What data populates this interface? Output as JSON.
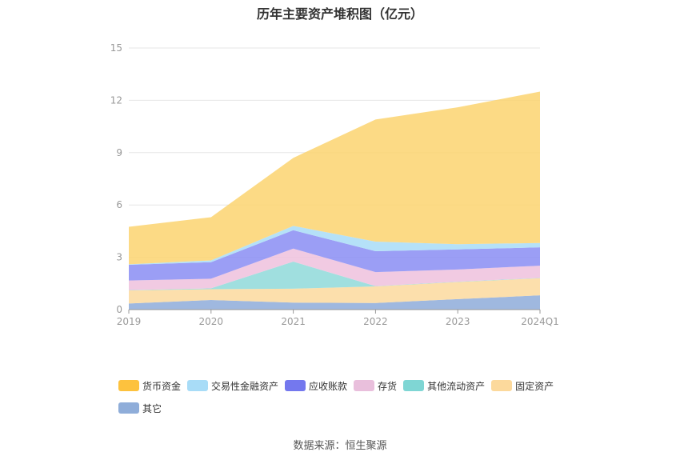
{
  "chart_data": {
    "type": "area",
    "stacked": true,
    "title": "历年主要资产堆积图（亿元）",
    "categories": [
      "2019",
      "2020",
      "2021",
      "2022",
      "2023",
      "2024Q1"
    ],
    "ylim": [
      0,
      15
    ],
    "yticks": [
      0,
      3,
      6,
      9,
      12,
      15
    ],
    "grid": true,
    "legend_position": "bottom",
    "series": [
      {
        "name": "其它",
        "color": "#8eacd9",
        "values": [
          0.35,
          0.55,
          0.4,
          0.38,
          0.6,
          0.82
        ]
      },
      {
        "name": "固定资产",
        "color": "#fbd99e",
        "values": [
          0.75,
          0.62,
          0.8,
          0.95,
          0.98,
          0.98
        ]
      },
      {
        "name": "其他流动资产",
        "color": "#8fd9d9",
        "values": [
          0.02,
          0.05,
          1.55,
          0.02,
          0.02,
          0.02
        ]
      },
      {
        "name": "存货",
        "color": "#eec1dd",
        "values": [
          0.55,
          0.55,
          0.75,
          0.8,
          0.7,
          0.7
        ]
      },
      {
        "name": "应收账款",
        "color": "#8a8df3",
        "values": [
          0.9,
          0.95,
          1.05,
          1.2,
          1.15,
          1.05
        ]
      },
      {
        "name": "交易性金融资产",
        "color": "#a8dcf7",
        "values": [
          0.03,
          0.1,
          0.25,
          0.55,
          0.3,
          0.25
        ]
      },
      {
        "name": "货币资金",
        "color": "#fcd470",
        "values": [
          2.15,
          2.48,
          3.9,
          7.0,
          7.85,
          8.68
        ]
      }
    ],
    "legend_order": [
      "货币资金",
      "交易性金融资产",
      "应收账款",
      "存货",
      "其他流动资产",
      "固定资产",
      "其它"
    ],
    "legend_colors": {
      "货币资金": "#fdc23e",
      "交易性金融资产": "#a8dcf7",
      "应收账款": "#7478ee",
      "存货": "#e9bfdc",
      "其他流动资产": "#7fd6d4",
      "固定资产": "#fcd99c",
      "其它": "#8fadd9"
    }
  },
  "footer": {
    "source": "数据来源：恒生聚源"
  }
}
